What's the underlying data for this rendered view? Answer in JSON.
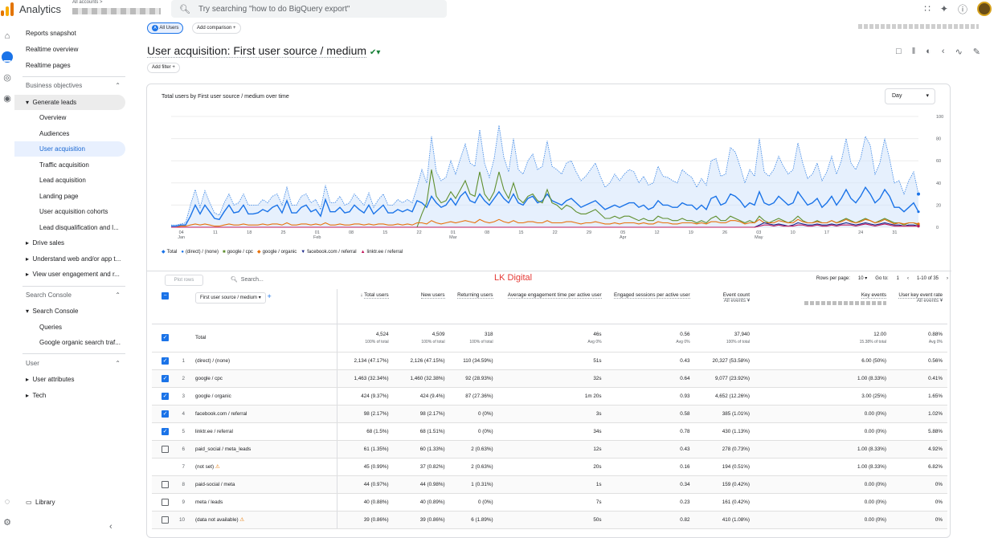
{
  "app": {
    "title": "Analytics",
    "accounts_label": "All accounts >",
    "search_placeholder": "Try searching \"how to do BigQuery export\""
  },
  "sidebar": {
    "items": [
      "Reports snapshot",
      "Realtime overview",
      "Realtime pages"
    ],
    "business_objectives": "Business objectives",
    "generate_leads": "Generate leads",
    "generate_leads_children": [
      "Overview",
      "Audiences",
      "User acquisition",
      "Traffic acquisition",
      "Lead acquisition",
      "Landing page",
      "User acquisition cohorts",
      "Lead disqualification and l..."
    ],
    "collections": [
      "Drive sales",
      "Understand web and/or app t...",
      "View user engagement and r..."
    ],
    "search_console_section": "Search Console",
    "search_console": "Search Console",
    "search_console_children": [
      "Queries",
      "Google organic search traf..."
    ],
    "user_section": "User",
    "user_items": [
      "User attributes",
      "Tech"
    ],
    "library": "Library"
  },
  "header": {
    "all_users": "All Users",
    "add_comparison": "Add comparison",
    "title": "User acquisition: First user source / medium",
    "add_filter": "Add filter"
  },
  "chart_card": {
    "title": "Total users by First user source / medium over time",
    "granularity": "Day"
  },
  "chart_data": {
    "type": "line",
    "x_ticks": [
      "04\nJan",
      "11",
      "18",
      "25",
      "01\nFeb",
      "08",
      "15",
      "22",
      "01\nMar",
      "08",
      "15",
      "22",
      "29",
      "05\nApr",
      "12",
      "19",
      "26",
      "03\nMay",
      "10",
      "17",
      "24",
      "31"
    ],
    "ylim": [
      0,
      100
    ],
    "y_ticks": [
      0,
      20,
      40,
      60,
      80,
      100
    ],
    "legend": [
      {
        "name": "Total",
        "color": "#1a73e8"
      },
      {
        "name": "(direct) / (none)",
        "color": "#1a73e8"
      },
      {
        "name": "google / cpc",
        "color": "#5f8f2f"
      },
      {
        "name": "google / organic",
        "color": "#e8710a"
      },
      {
        "name": "facebook.com / referral",
        "color": "#1e2a8a"
      },
      {
        "name": "linktr.ee / referral",
        "color": "#c2185b"
      }
    ],
    "series": [
      {
        "name": "Total",
        "values": [
          2,
          2,
          3,
          4,
          20,
          34,
          18,
          33,
          22,
          13,
          11,
          22,
          30,
          20,
          22,
          30,
          20,
          20,
          20,
          25,
          22,
          28,
          30,
          20,
          36,
          20,
          20,
          28,
          30,
          22,
          25,
          16,
          38,
          22,
          22,
          28,
          20,
          22,
          30,
          25,
          20,
          31,
          18,
          25,
          30,
          20,
          20,
          25,
          22,
          25,
          22,
          36,
          52,
          40,
          82,
          50,
          42,
          45,
          60,
          48,
          62,
          75,
          58,
          55,
          88,
          58,
          45,
          62,
          92,
          63,
          50,
          80,
          52,
          48,
          60,
          66,
          52,
          55,
          78,
          55,
          52,
          48,
          58,
          60,
          50,
          42,
          46,
          52,
          58,
          46,
          36,
          40,
          48,
          42,
          48,
          52,
          50,
          40,
          46,
          38,
          40,
          55,
          46,
          45,
          42,
          40,
          52,
          48,
          45,
          36,
          44,
          38,
          60,
          62,
          46,
          48,
          72,
          68,
          55,
          40,
          52,
          46,
          80,
          50,
          46,
          52,
          64,
          55,
          48,
          52,
          76,
          58,
          44,
          48,
          58,
          42,
          50,
          64,
          48,
          60,
          80,
          58,
          52,
          62,
          82,
          74,
          48,
          58,
          80,
          62,
          40,
          42,
          30,
          42,
          50,
          30
        ]
      },
      {
        "name": "(direct) / (none)",
        "values": [
          1,
          1,
          2,
          2,
          10,
          20,
          12,
          20,
          14,
          8,
          7,
          14,
          20,
          13,
          14,
          20,
          12,
          12,
          13,
          16,
          14,
          18,
          20,
          13,
          24,
          13,
          13,
          18,
          20,
          14,
          16,
          10,
          25,
          14,
          14,
          18,
          13,
          14,
          20,
          16,
          13,
          20,
          12,
          16,
          20,
          13,
          13,
          16,
          14,
          16,
          14,
          24,
          22,
          18,
          28,
          22,
          18,
          20,
          26,
          20,
          28,
          32,
          24,
          22,
          30,
          24,
          20,
          26,
          32,
          26,
          22,
          30,
          22,
          20,
          26,
          28,
          22,
          24,
          30,
          24,
          22,
          20,
          24,
          26,
          22,
          18,
          20,
          22,
          24,
          20,
          16,
          18,
          20,
          18,
          20,
          22,
          22,
          18,
          20,
          16,
          18,
          24,
          20,
          20,
          18,
          18,
          22,
          20,
          20,
          16,
          20,
          16,
          26,
          28,
          20,
          22,
          30,
          28,
          24,
          18,
          22,
          20,
          32,
          22,
          20,
          22,
          28,
          24,
          20,
          22,
          32,
          26,
          20,
          22,
          26,
          18,
          22,
          28,
          20,
          26,
          34,
          26,
          22,
          28,
          36,
          30,
          22,
          26,
          34,
          28,
          18,
          18,
          14,
          18,
          22,
          14
        ]
      },
      {
        "name": "google / cpc",
        "values": [
          0,
          0,
          0,
          0,
          0,
          0,
          0,
          0,
          0,
          0,
          0,
          0,
          0,
          0,
          0,
          0,
          0,
          0,
          0,
          0,
          0,
          0,
          0,
          0,
          0,
          0,
          0,
          0,
          0,
          0,
          0,
          0,
          0,
          0,
          0,
          0,
          0,
          0,
          0,
          0,
          0,
          0,
          0,
          0,
          0,
          0,
          0,
          0,
          0,
          0,
          0,
          0,
          12,
          22,
          52,
          28,
          22,
          24,
          32,
          26,
          34,
          42,
          30,
          28,
          50,
          30,
          24,
          32,
          50,
          34,
          26,
          40,
          26,
          22,
          28,
          30,
          24,
          22,
          34,
          22,
          20,
          16,
          20,
          18,
          14,
          12,
          12,
          14,
          16,
          12,
          8,
          8,
          10,
          8,
          10,
          10,
          8,
          6,
          8,
          6,
          6,
          10,
          8,
          8,
          6,
          6,
          8,
          6,
          6,
          4,
          6,
          4,
          8,
          10,
          6,
          6,
          10,
          8,
          6,
          4,
          6,
          4,
          10,
          6,
          4,
          6,
          8,
          6,
          4,
          6,
          10,
          6,
          4,
          4,
          6,
          4,
          4,
          6,
          4,
          6,
          8,
          6,
          4,
          6,
          8,
          6,
          4,
          6,
          8,
          6,
          4,
          4,
          2,
          4,
          4,
          2
        ]
      },
      {
        "name": "google / organic",
        "values": [
          0,
          0,
          1,
          1,
          2,
          3,
          2,
          3,
          2,
          1,
          1,
          2,
          3,
          2,
          2,
          3,
          2,
          2,
          2,
          3,
          2,
          3,
          3,
          2,
          4,
          2,
          2,
          3,
          3,
          2,
          3,
          2,
          4,
          2,
          2,
          3,
          2,
          2,
          3,
          3,
          2,
          3,
          2,
          3,
          3,
          2,
          2,
          3,
          2,
          3,
          2,
          4,
          4,
          3,
          6,
          4,
          3,
          4,
          5,
          4,
          5,
          6,
          5,
          4,
          7,
          5,
          4,
          5,
          7,
          5,
          4,
          6,
          4,
          4,
          5,
          5,
          4,
          4,
          6,
          4,
          4,
          4,
          5,
          5,
          4,
          3,
          4,
          4,
          5,
          4,
          3,
          3,
          4,
          3,
          4,
          4,
          4,
          3,
          4,
          3,
          3,
          5,
          4,
          4,
          3,
          3,
          4,
          4,
          4,
          3,
          4,
          3,
          5,
          5,
          4,
          4,
          6,
          6,
          5,
          3,
          4,
          4,
          7,
          4,
          4,
          4,
          6,
          5,
          4,
          4,
          7,
          5,
          4,
          4,
          5,
          4,
          4,
          6,
          4,
          5,
          7,
          5,
          4,
          5,
          7,
          6,
          4,
          5,
          7,
          5,
          3,
          4,
          3,
          4,
          4,
          3
        ]
      },
      {
        "name": "facebook.com / referral",
        "values": [
          0,
          0,
          0,
          0,
          0,
          0,
          0,
          0,
          0,
          0,
          0,
          0,
          0,
          0,
          0,
          0,
          0,
          0,
          0,
          0,
          0,
          0,
          0,
          0,
          0,
          0,
          0,
          0,
          0,
          0,
          0,
          0,
          0,
          0,
          0,
          0,
          0,
          0,
          0,
          0,
          0,
          0,
          0,
          0,
          0,
          0,
          0,
          0,
          0,
          0,
          0,
          0,
          0,
          0,
          0,
          0,
          0,
          0,
          0,
          0,
          0,
          0,
          0,
          0,
          0,
          0,
          0,
          0,
          0,
          0,
          0,
          0,
          0,
          0,
          0,
          0,
          0,
          0,
          0,
          0,
          0,
          0,
          0,
          0,
          0,
          0,
          0,
          0,
          0,
          0,
          0,
          0,
          0,
          0,
          0,
          0,
          0,
          0,
          0,
          0,
          0,
          0,
          0,
          0,
          0,
          0,
          0,
          0,
          0,
          0,
          0,
          0,
          0,
          0,
          0,
          0,
          0,
          0,
          0,
          0,
          0,
          0,
          2,
          4,
          3,
          2,
          3,
          2,
          1,
          2,
          4,
          3,
          2,
          2,
          3,
          2,
          2,
          3,
          2,
          3,
          4,
          3,
          2,
          3,
          4,
          3,
          2,
          3,
          4,
          3,
          2,
          2,
          1,
          2,
          2,
          1
        ]
      },
      {
        "name": "linktr.ee / referral",
        "values": [
          0,
          0,
          0,
          0,
          0,
          0,
          0,
          0,
          0,
          0,
          0,
          0,
          0,
          0,
          0,
          0,
          0,
          0,
          0,
          0,
          0,
          0,
          0,
          0,
          0,
          0,
          0,
          0,
          0,
          0,
          0,
          0,
          0,
          0,
          0,
          0,
          0,
          0,
          0,
          0,
          0,
          0,
          0,
          0,
          0,
          0,
          0,
          0,
          0,
          0,
          0,
          0,
          0,
          0,
          0,
          0,
          0,
          0,
          0,
          0,
          0,
          0,
          0,
          0,
          0,
          0,
          0,
          0,
          0,
          0,
          0,
          0,
          0,
          0,
          0,
          0,
          0,
          0,
          0,
          0,
          0,
          0,
          0,
          0,
          0,
          0,
          0,
          0,
          0,
          0,
          0,
          0,
          0,
          0,
          0,
          0,
          0,
          0,
          0,
          0,
          0,
          0,
          0,
          0,
          0,
          0,
          0,
          0,
          0,
          0,
          0,
          0,
          0,
          0,
          0,
          0,
          0,
          0,
          0,
          0,
          0,
          0,
          1,
          2,
          2,
          1,
          2,
          1,
          1,
          1,
          2,
          2,
          1,
          1,
          2,
          1,
          1,
          2,
          1,
          2,
          2,
          2,
          1,
          2,
          3,
          2,
          1,
          2,
          3,
          2,
          1,
          1,
          1,
          1,
          1,
          1
        ]
      }
    ]
  },
  "table": {
    "plot_rows": "Plot rows",
    "search_placeholder": "Search...",
    "watermark": "LK Digital",
    "rows_per_page_label": "Rows per page:",
    "rows_per_page": "10",
    "goto_label": "Go to:",
    "goto": "1",
    "range": "1-10 of 35",
    "dimension": "First user source / medium",
    "columns": [
      "Total users",
      "New users",
      "Returning users",
      "Average engagement time per active user",
      "Engaged sessions per active user",
      "Event count",
      "Key events",
      "User key event rate"
    ],
    "event_filter": "All events",
    "total": {
      "label": "Total",
      "values": [
        "4,524",
        "4,509",
        "318",
        "46s",
        "0.56",
        "37,940",
        "12.00",
        "0.88%"
      ],
      "subs": [
        "100% of total",
        "100% of total",
        "100% of total",
        "Avg 0%",
        "Avg 0%",
        "100% of total",
        "15.38% of total",
        "Avg 0%"
      ]
    },
    "rows": [
      {
        "n": "1",
        "name": "(direct) / (none)",
        "checked": true,
        "warn": false,
        "v": [
          "2,134 (47.17%)",
          "2,126 (47.15%)",
          "110 (34.59%)",
          "51s",
          "0.43",
          "20,327 (53.58%)",
          "6.00 (50%)",
          "0.56%"
        ]
      },
      {
        "n": "2",
        "name": "google / cpc",
        "checked": true,
        "warn": false,
        "v": [
          "1,463 (32.34%)",
          "1,460 (32.38%)",
          "92 (28.93%)",
          "32s",
          "0.64",
          "9,077 (23.92%)",
          "1.00 (8.33%)",
          "0.41%"
        ]
      },
      {
        "n": "3",
        "name": "google / organic",
        "checked": true,
        "warn": false,
        "v": [
          "424 (9.37%)",
          "424 (9.4%)",
          "87 (27.36%)",
          "1m 20s",
          "0.93",
          "4,652 (12.26%)",
          "3.00 (25%)",
          "1.65%"
        ]
      },
      {
        "n": "4",
        "name": "facebook.com / referral",
        "checked": true,
        "warn": false,
        "v": [
          "98 (2.17%)",
          "98 (2.17%)",
          "0 (0%)",
          "3s",
          "0.58",
          "385 (1.01%)",
          "0.00 (0%)",
          "1.02%"
        ]
      },
      {
        "n": "5",
        "name": "linktr.ee / referral",
        "checked": true,
        "warn": false,
        "v": [
          "68 (1.5%)",
          "68 (1.51%)",
          "0 (0%)",
          "34s",
          "0.78",
          "430 (1.13%)",
          "0.00 (0%)",
          "5.88%"
        ]
      },
      {
        "n": "6",
        "name": "paid_social / meta_leads",
        "checked": false,
        "warn": false,
        "v": [
          "61 (1.35%)",
          "60 (1.33%)",
          "2 (0.63%)",
          "12s",
          "0.43",
          "278 (0.73%)",
          "1.00 (8.33%)",
          "4.92%"
        ]
      },
      {
        "n": "7",
        "name": "(not set)",
        "checked": false,
        "nobox": true,
        "warn": true,
        "v": [
          "45 (0.99%)",
          "37 (0.82%)",
          "2 (0.63%)",
          "20s",
          "0.16",
          "194 (0.51%)",
          "1.00 (8.33%)",
          "6.82%"
        ]
      },
      {
        "n": "8",
        "name": "paid-social / meta",
        "checked": false,
        "warn": false,
        "v": [
          "44 (0.97%)",
          "44 (0.98%)",
          "1 (0.31%)",
          "1s",
          "0.34",
          "159 (0.42%)",
          "0.00 (0%)",
          "0%"
        ]
      },
      {
        "n": "9",
        "name": "meta / leads",
        "checked": false,
        "warn": false,
        "v": [
          "40 (0.88%)",
          "40 (0.89%)",
          "0 (0%)",
          "7s",
          "0.23",
          "161 (0.42%)",
          "0.00 (0%)",
          "0%"
        ]
      },
      {
        "n": "10",
        "name": "(data not available)",
        "checked": false,
        "warn": true,
        "v": [
          "39 (0.86%)",
          "39 (0.86%)",
          "6 (1.89%)",
          "50s",
          "0.82",
          "410 (1.08%)",
          "0.00 (0%)",
          "0%"
        ]
      }
    ]
  }
}
